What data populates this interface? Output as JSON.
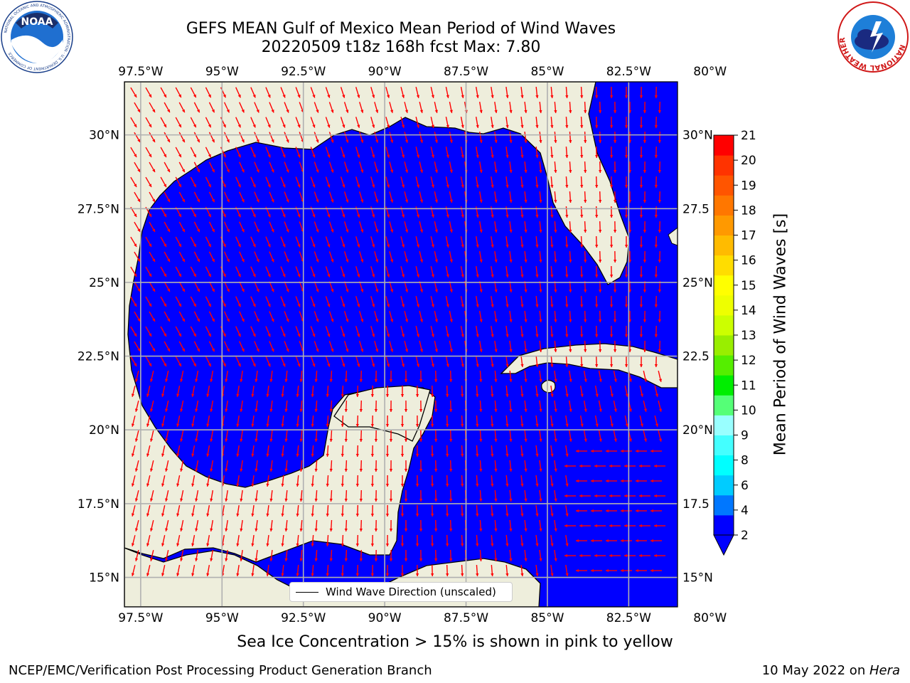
{
  "title": {
    "line1": "GEFS MEAN Gulf of Mexico Mean Period of Wind Waves",
    "line2": "20220509 t18z 168h fcst   Max: 7.80"
  },
  "logos": {
    "left": "NOAA",
    "left_ring": "NATIONAL OCEANIC AND ATMOSPHERIC ADMINISTRATION · U.S. DEPARTMENT OF COMMERCE",
    "right_ring": "NATIONAL WEATHER SERVICE"
  },
  "map": {
    "projection": "PlateCarree",
    "lon_range": [
      -98.0,
      -81.0
    ],
    "lat_range": [
      14.0,
      31.8
    ],
    "lon_ticks": [
      "97.5°W",
      "95°W",
      "92.5°W",
      "90°W",
      "87.5°W",
      "85°W",
      "82.5°W",
      "80°W"
    ],
    "lat_ticks_left": [
      "30°N",
      "27.5°N",
      "25°N",
      "22.5°N",
      "20°N",
      "17.5°N",
      "15°N"
    ],
    "lat_ticks_right": [
      "30°N",
      "27.5",
      "25°N",
      "22.5",
      "20°N",
      "17.5",
      "15°N"
    ],
    "land_color": "#eeeedc",
    "gridlines": true,
    "arrow_color": "#ff0000"
  },
  "colorbar": {
    "label": "Mean Period of Wind Waves [s]",
    "ticks": [
      "21",
      "20",
      "19",
      "18",
      "17",
      "16",
      "15",
      "14",
      "13",
      "12",
      "11",
      "10",
      "9",
      "8",
      "6",
      "4",
      "2"
    ],
    "colors": [
      "#0000ff",
      "#0077ff",
      "#00ccff",
      "#00ffff",
      "#44ffff",
      "#99ffff",
      "#55ff77",
      "#00ee00",
      "#55ee00",
      "#99ee00",
      "#ccff00",
      "#eeff00",
      "#ffff00",
      "#ffdd00",
      "#ffbb00",
      "#ff9900",
      "#ff7700",
      "#ff5500",
      "#ff3300",
      "#ff0000"
    ],
    "extend": "min"
  },
  "legend": {
    "label": "Wind Wave Direction (unscaled)"
  },
  "note": "Sea Ice Concentration > 15% is shown in pink to yellow",
  "footer": {
    "left": "NCEP/EMC/Verification Post Processing Product Generation Branch",
    "right_prefix": "10 May 2022 on ",
    "right_host": "Hera"
  }
}
